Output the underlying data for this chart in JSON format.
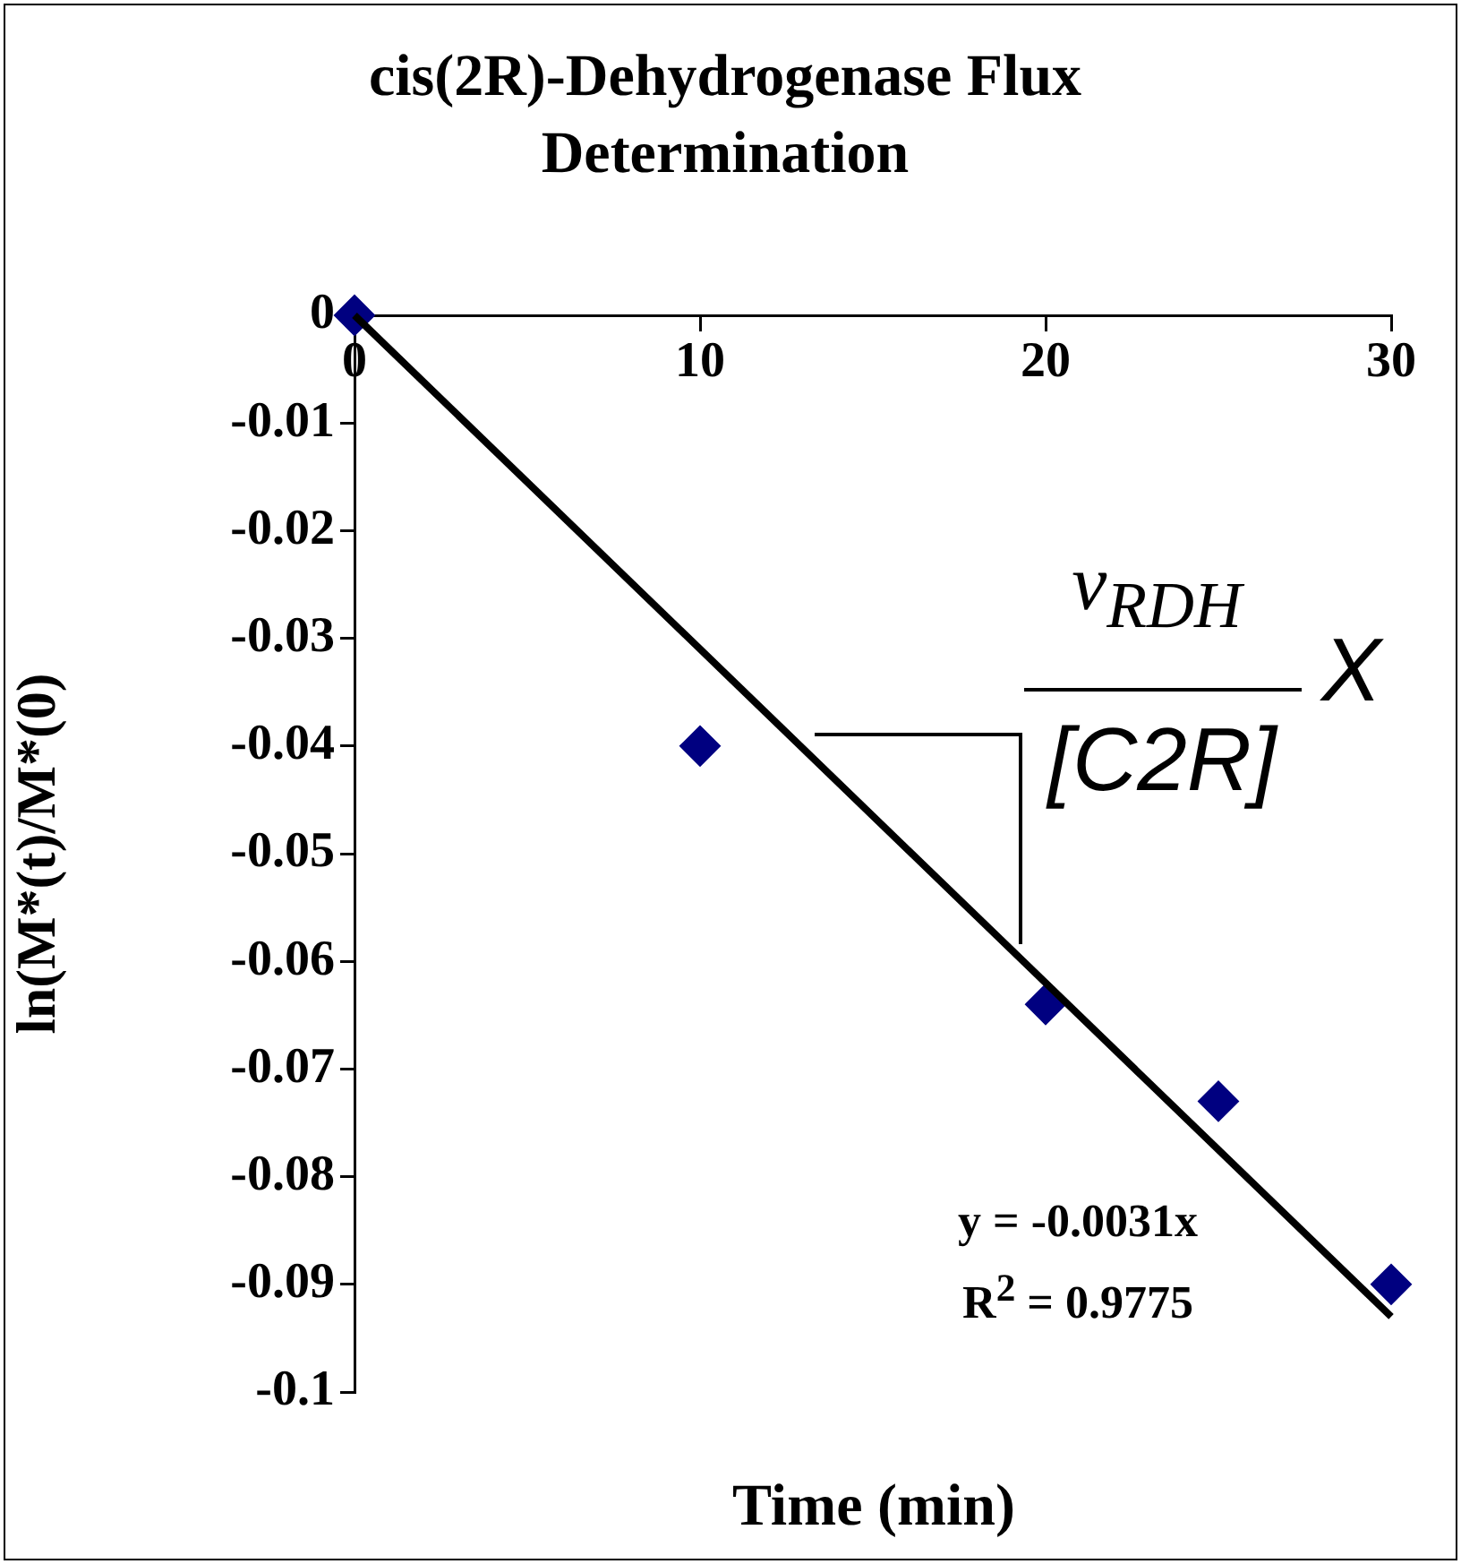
{
  "chart_data": {
    "type": "scatter",
    "title": "cis(2R)-Dehydrogenase Flux Determination",
    "xlabel": "Time (min)",
    "ylabel": "ln(M*(t)/M*(0)",
    "series": [
      {
        "type": "scatter",
        "color": "#000080",
        "x": [
          0,
          10,
          20,
          25,
          30
        ],
        "values": [
          0,
          -0.04,
          -0.064,
          -0.073,
          -0.09
        ],
        "marker": "diamond"
      },
      {
        "type": "line",
        "color": "#000000",
        "x": [
          0,
          30
        ],
        "values": [
          0,
          -0.093
        ],
        "marker": "none",
        "line_style": "solid"
      }
    ],
    "xlim": [
      0,
      30
    ],
    "xticks": [
      0,
      10,
      20,
      30
    ],
    "ylim": [
      -0.1,
      0
    ],
    "yticks": [
      -0.1,
      -0.09,
      -0.08,
      -0.07,
      -0.06,
      -0.05,
      -0.04,
      -0.03,
      -0.02,
      -0.01,
      0
    ],
    "grid": false,
    "legend": false,
    "annotations": [
      "y = -0.0031x",
      "R$^{2}$ = 0.9775",
      "v$_{RDH}$",
      "[C2R]",
      "X"
    ]
  }
}
